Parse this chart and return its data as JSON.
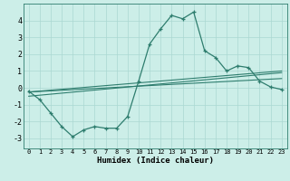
{
  "x": [
    0,
    1,
    2,
    3,
    4,
    5,
    6,
    7,
    8,
    9,
    10,
    11,
    12,
    13,
    14,
    15,
    16,
    17,
    18,
    19,
    20,
    21,
    22,
    23
  ],
  "main_curve": [
    -0.2,
    -0.7,
    -1.5,
    -2.3,
    -2.9,
    -2.5,
    -2.3,
    -2.4,
    -2.4,
    -1.7,
    0.4,
    2.6,
    3.5,
    4.3,
    4.1,
    4.5,
    2.2,
    1.8,
    1.0,
    1.3,
    1.2,
    0.4,
    0.05,
    -0.1
  ],
  "trend1_start": -0.25,
  "trend1_end": 1.0,
  "trend2_start": -0.25,
  "trend2_end": 0.55,
  "trend3_start": -0.5,
  "trend3_end": 0.9,
  "color": "#2e7d6e",
  "bg_color": "#cceee8",
  "grid_color": "#aad8d2",
  "xlabel": "Humidex (Indice chaleur)",
  "xlim": [
    -0.5,
    23.5
  ],
  "ylim": [
    -3.6,
    5.0
  ],
  "yticks": [
    -3,
    -2,
    -1,
    0,
    1,
    2,
    3,
    4
  ],
  "xticks": [
    0,
    1,
    2,
    3,
    4,
    5,
    6,
    7,
    8,
    9,
    10,
    11,
    12,
    13,
    14,
    15,
    16,
    17,
    18,
    19,
    20,
    21,
    22,
    23
  ]
}
